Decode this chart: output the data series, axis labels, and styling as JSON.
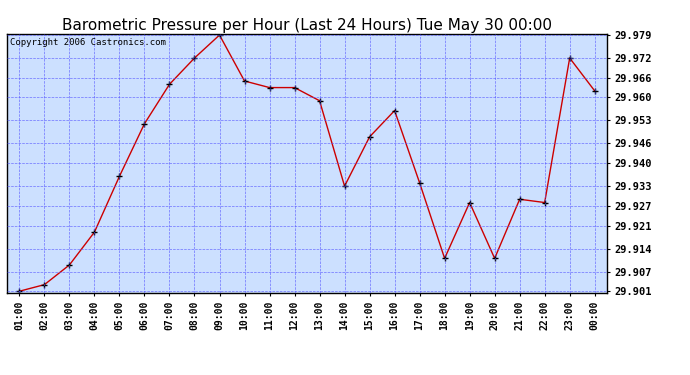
{
  "title": "Barometric Pressure per Hour (Last 24 Hours) Tue May 30 00:00",
  "copyright": "Copyright 2006 Castronics.com",
  "x_labels": [
    "01:00",
    "02:00",
    "03:00",
    "04:00",
    "05:00",
    "06:00",
    "07:00",
    "08:00",
    "09:00",
    "10:00",
    "11:00",
    "12:00",
    "13:00",
    "14:00",
    "15:00",
    "16:00",
    "17:00",
    "18:00",
    "19:00",
    "20:00",
    "21:00",
    "22:00",
    "23:00",
    "00:00"
  ],
  "y_values": [
    29.901,
    29.903,
    29.909,
    29.919,
    29.936,
    29.952,
    29.964,
    29.972,
    29.979,
    29.965,
    29.963,
    29.963,
    29.959,
    29.933,
    29.948,
    29.956,
    29.934,
    29.911,
    29.928,
    29.911,
    29.929,
    29.928,
    29.972,
    29.962
  ],
  "ylim_min": 29.901,
  "ylim_max": 29.979,
  "yticks": [
    29.901,
    29.907,
    29.914,
    29.921,
    29.927,
    29.933,
    29.94,
    29.946,
    29.953,
    29.96,
    29.966,
    29.972,
    29.979
  ],
  "line_color": "#cc0000",
  "marker_color": "#000000",
  "plot_bg": "#cce0ff",
  "grid_color": "#5555ff",
  "title_fontsize": 11,
  "copyright_fontsize": 6.5,
  "tick_fontsize": 7,
  "ytick_fontsize": 7.5
}
